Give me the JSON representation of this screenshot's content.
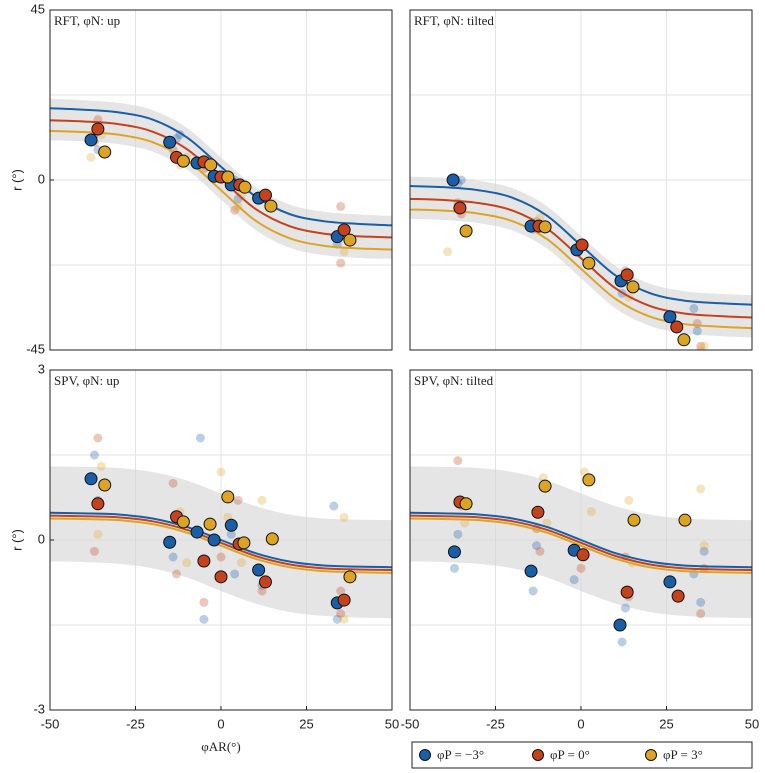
{
  "legend": [
    {
      "name": "φP = −3°",
      "color": "#1a5ea8"
    },
    {
      "name": "φP = 0°",
      "color": "#c4421c"
    },
    {
      "name": "φP = 3°",
      "color": "#dda424"
    }
  ],
  "chart_data": [
    {
      "type": "scatter",
      "title": "RFT, φN: up",
      "ylabel": "r (°)",
      "xlim": [
        -50,
        50
      ],
      "ylim": [
        -45,
        45
      ],
      "yticks": [
        -45,
        0,
        45
      ],
      "xgrid": [
        -25,
        0,
        25
      ],
      "ygrid": [
        -22.5,
        0,
        22.5
      ],
      "fit_x": [
        -50,
        -40,
        -30,
        -20,
        -10,
        0,
        10,
        20,
        30,
        40,
        50
      ],
      "band": {
        "lower": [
          10.5,
          10.2,
          9.5,
          7.5,
          2.8,
          -5.2,
          -13.2,
          -17.9,
          -19.9,
          -20.6,
          -20.9
        ],
        "upper": [
          21.5,
          21.1,
          20.4,
          18.5,
          13.8,
          6,
          -1.8,
          -6.5,
          -8.4,
          -9.1,
          -9.5
        ]
      },
      "series": [
        {
          "color": "#1a5ea8",
          "points": {
            "x": [
              -38,
              -15,
              -7,
              -2,
              3,
              11,
              34
            ],
            "y": [
              10.6,
              10,
              4.5,
              1,
              -1.3,
              -4.8,
              -15
            ]
          },
          "trials": {
            "x": [
              -37,
              -36,
              -13,
              -12,
              4,
              5,
              34,
              35
            ],
            "y": [
              12,
              8,
              11,
              12,
              0,
              -5,
              -17,
              -14
            ]
          },
          "fit": [
            19,
            18.6,
            17.9,
            16,
            11.3,
            3.5,
            -4.3,
            -9,
            -10.9,
            -11.6,
            -12
          ]
        },
        {
          "color": "#c4421c",
          "points": {
            "x": [
              -36,
              -13,
              -5,
              0,
              5.5,
              13,
              36
            ],
            "y": [
              13.5,
              6,
              4.8,
              0.8,
              -1.3,
              -4,
              -13.2
            ]
          },
          "trials": {
            "x": [
              -36,
              -37,
              -14,
              -5,
              4,
              5,
              35,
              35
            ],
            "y": [
              16,
              10,
              8,
              3,
              -8,
              -1,
              -7,
              -22
            ]
          },
          "fit": [
            15.8,
            15.5,
            14.8,
            12.8,
            8.2,
            0.3,
            -7.6,
            -12.2,
            -14.2,
            -14.9,
            -15.2
          ]
        },
        {
          "color": "#dda424",
          "points": {
            "x": [
              -34,
              -11,
              -3,
              2,
              7,
              14.6,
              37.7
            ],
            "y": [
              7.4,
              5,
              4,
              0.8,
              -1.9,
              -6.9,
              -15.9
            ]
          },
          "trials": {
            "x": [
              -38,
              -35,
              -12,
              -10,
              5,
              6,
              36,
              36
            ],
            "y": [
              6,
              12,
              4,
              6,
              -7,
              -4,
              -19,
              -14
            ]
          },
          "fit": [
            13,
            12.7,
            12,
            10,
            5.3,
            -2.7,
            -10.7,
            -15.4,
            -17.4,
            -18.1,
            -18.4
          ]
        }
      ]
    },
    {
      "type": "scatter",
      "title": "RFT, φN: tilted",
      "xlim": [
        -50,
        50
      ],
      "ylim": [
        -45,
        45
      ],
      "xgrid": [
        -25,
        0,
        25
      ],
      "ygrid": [
        -22.5,
        0,
        22.5
      ],
      "fit_x": [
        -50,
        -40,
        -30,
        -20,
        -10,
        0,
        10,
        20,
        30,
        40,
        50
      ],
      "band": {
        "lower": [
          -10.3,
          -10.6,
          -11.4,
          -13.4,
          -18.1,
          -26,
          -33.9,
          -38.6,
          -40.6,
          -41.3,
          -41.7
        ],
        "upper": [
          0.9,
          0.6,
          -0.2,
          -2.2,
          -6.9,
          -14.8,
          -22.7,
          -27.4,
          -29.4,
          -30.1,
          -30.5
        ]
      },
      "series": [
        {
          "color": "#1a5ea8",
          "points": {
            "x": [
              -37.4,
              -14.6,
              -1.2,
              11.7,
              26
            ],
            "y": [
              0,
              -12.2,
              -18.5,
              -26.7,
              -36.2
            ]
          },
          "trials": {
            "x": [
              -36,
              -35,
              -14,
              12,
              33,
              34
            ],
            "y": [
              -1,
              0,
              -13,
              -30,
              -34,
              -40
            ]
          },
          "fit": [
            -1.6,
            -1.9,
            -2.7,
            -4.7,
            -9.4,
            -17.3,
            -25.2,
            -29.9,
            -31.9,
            -32.6,
            -33
          ]
        },
        {
          "color": "#c4421c",
          "points": {
            "x": [
              -35.4,
              -12.3,
              0.3,
              13.5,
              28
            ],
            "y": [
              -7.4,
              -12.2,
              -17.2,
              -25.1,
              -38.9
            ]
          },
          "trials": {
            "x": [
              -35,
              -36,
              -13,
              13,
              34,
              35
            ],
            "y": [
              -9,
              -6,
              -11,
              -24,
              -38,
              -44
            ]
          },
          "fit": [
            -5,
            -5.3,
            -6.1,
            -8.1,
            -12.8,
            -20.7,
            -28.6,
            -33.3,
            -35.3,
            -36,
            -36.4
          ]
        },
        {
          "color": "#dda424",
          "points": {
            "x": [
              -33.6,
              -10.5,
              2.3,
              15.2,
              30.1
            ],
            "y": [
              -13.5,
              -12.4,
              -22,
              -28.3,
              -42.3
            ]
          },
          "trials": {
            "x": [
              -39,
              -33,
              -12,
              14,
              36,
              35
            ],
            "y": [
              -19,
              -13,
              -10,
              -31,
              -44,
              -45
            ]
          },
          "fit": [
            -7.8,
            -8.1,
            -8.9,
            -10.9,
            -15.6,
            -23.5,
            -31.4,
            -36.1,
            -38.1,
            -38.8,
            -39.2
          ]
        }
      ]
    },
    {
      "type": "scatter",
      "title": "SPV, φN: up",
      "ylabel": "r (°)",
      "xlabel": "φAR(°)",
      "xlim": [
        -50,
        50
      ],
      "ylim": [
        -3,
        3
      ],
      "yticks": [
        -3,
        0,
        3
      ],
      "xticks": [
        -50,
        -25,
        0,
        25,
        50
      ],
      "xgrid": [
        -25,
        0,
        25
      ],
      "ygrid": [
        -1.5,
        0,
        1.5
      ],
      "fit_x": [
        -50,
        -40,
        -30,
        -20,
        -10,
        0,
        10,
        20,
        30,
        40,
        50
      ],
      "band": {
        "lower": [
          -0.38,
          -0.39,
          -0.42,
          -0.5,
          -0.66,
          -0.9,
          -1.12,
          -1.27,
          -1.34,
          -1.37,
          -1.38
        ],
        "upper": [
          1.3,
          1.29,
          1.27,
          1.2,
          1.05,
          0.82,
          0.6,
          0.45,
          0.38,
          0.36,
          0.35
        ]
      },
      "series": [
        {
          "color": "#1a5ea8",
          "points": {
            "x": [
              -38,
              -15,
              -7,
              -2,
              3,
              11,
              34
            ],
            "y": [
              1.08,
              -0.04,
              0.14,
              0,
              0.26,
              -0.53,
              -1.11
            ]
          },
          "trials": {
            "x": [
              -37,
              -36,
              -14,
              -6,
              -5,
              3,
              4,
              12,
              33,
              34
            ],
            "y": [
              1.5,
              0.7,
              -0.3,
              1.8,
              -1.4,
              0.1,
              -0.6,
              -0.8,
              0.6,
              -1.4
            ]
          },
          "fit": [
            0.48,
            0.47,
            0.45,
            0.38,
            0.23,
            0,
            -0.23,
            -0.38,
            -0.45,
            -0.47,
            -0.48
          ]
        },
        {
          "color": "#c4421c",
          "points": {
            "x": [
              -36,
              -13,
              -5,
              0,
              5.3,
              13,
              36
            ],
            "y": [
              0.64,
              0.41,
              -0.37,
              -0.65,
              -0.07,
              -0.74,
              -1.06
            ]
          },
          "trials": {
            "x": [
              -36,
              -37,
              -14,
              -13,
              -5,
              0,
              5,
              12,
              35,
              35
            ],
            "y": [
              1.8,
              -0.2,
              1,
              -0.6,
              -1.1,
              -0.3,
              0.7,
              -0.9,
              -0.9,
              -1.3
            ]
          },
          "fit": [
            0.43,
            0.42,
            0.4,
            0.33,
            0.18,
            -0.05,
            -0.28,
            -0.43,
            -0.5,
            -0.52,
            -0.53
          ]
        },
        {
          "color": "#dda424",
          "points": {
            "x": [
              -34,
              -11,
              -3.2,
              2,
              6.7,
              15,
              37.7
            ],
            "y": [
              0.97,
              0.32,
              0.28,
              0.76,
              -0.05,
              0.02,
              -0.65
            ]
          },
          "trials": {
            "x": [
              -35,
              -36,
              -12,
              -10,
              0,
              2,
              6,
              12,
              36,
              36
            ],
            "y": [
              1.3,
              0.1,
              0.5,
              -0.4,
              1.2,
              0.4,
              -0.4,
              0.7,
              0.4,
              -1.4
            ]
          },
          "fit": [
            0.38,
            0.37,
            0.35,
            0.28,
            0.13,
            -0.1,
            -0.33,
            -0.48,
            -0.55,
            -0.57,
            -0.58
          ]
        }
      ]
    },
    {
      "type": "scatter",
      "title": "SPV, φN: tilted",
      "xlim": [
        -50,
        50
      ],
      "ylim": [
        -3,
        3
      ],
      "xticks": [
        -50,
        -25,
        0,
        25,
        50
      ],
      "xgrid": [
        -25,
        0,
        25
      ],
      "ygrid": [
        -1.5,
        0,
        1.5
      ],
      "fit_x": [
        -50,
        -40,
        -30,
        -20,
        -10,
        0,
        10,
        20,
        30,
        40,
        50
      ],
      "band": {
        "lower": [
          -0.38,
          -0.39,
          -0.42,
          -0.5,
          -0.66,
          -0.9,
          -1.12,
          -1.27,
          -1.34,
          -1.37,
          -1.38
        ],
        "upper": [
          1.3,
          1.29,
          1.27,
          1.2,
          1.05,
          0.82,
          0.6,
          0.45,
          0.38,
          0.36,
          0.35
        ]
      },
      "series": [
        {
          "color": "#1a5ea8",
          "points": {
            "x": [
              -37,
              -14.6,
              -2,
              11.4,
              26
            ],
            "y": [
              -0.21,
              -0.55,
              -0.18,
              -1.5,
              -0.74
            ]
          },
          "trials": {
            "x": [
              -37,
              -36,
              -14,
              -13,
              -2,
              12,
              13,
              33,
              35,
              36
            ],
            "y": [
              -0.5,
              0.1,
              -0.9,
              -0.1,
              -0.7,
              -1.8,
              -1.2,
              -0.6,
              -1.1,
              -0.2
            ]
          },
          "fit": [
            0.48,
            0.47,
            0.45,
            0.38,
            0.23,
            0,
            -0.23,
            -0.38,
            -0.45,
            -0.47,
            -0.48
          ]
        },
        {
          "color": "#c4421c",
          "points": {
            "x": [
              -35.4,
              -12.6,
              0.6,
              13.5,
              28.4
            ],
            "y": [
              0.67,
              0.49,
              -0.26,
              -0.92,
              -0.99
            ]
          },
          "trials": {
            "x": [
              -36,
              -35,
              -13,
              -12,
              0,
              13,
              14,
              35,
              36
            ],
            "y": [
              1.4,
              0.6,
              0.2,
              -0.2,
              -0.5,
              -0.3,
              -1,
              -1.3,
              -0.5
            ]
          },
          "fit": [
            0.43,
            0.42,
            0.4,
            0.33,
            0.18,
            -0.05,
            -0.28,
            -0.43,
            -0.5,
            -0.52,
            -0.53
          ]
        },
        {
          "color": "#dda424",
          "points": {
            "x": [
              -33.6,
              -10.5,
              2.3,
              15.5,
              30.4
            ],
            "y": [
              0.64,
              0.95,
              1.06,
              0.35,
              0.35
            ]
          },
          "trials": {
            "x": [
              -35,
              -34,
              -11,
              -10,
              1,
              3,
              14,
              15,
              35,
              36
            ],
            "y": [
              0.7,
              0.3,
              1.1,
              0.3,
              1.2,
              0.5,
              0.7,
              -0.4,
              0.9,
              -0.1
            ]
          },
          "fit": [
            0.38,
            0.37,
            0.35,
            0.28,
            0.13,
            -0.1,
            -0.33,
            -0.48,
            -0.55,
            -0.57,
            -0.58
          ]
        }
      ]
    }
  ]
}
